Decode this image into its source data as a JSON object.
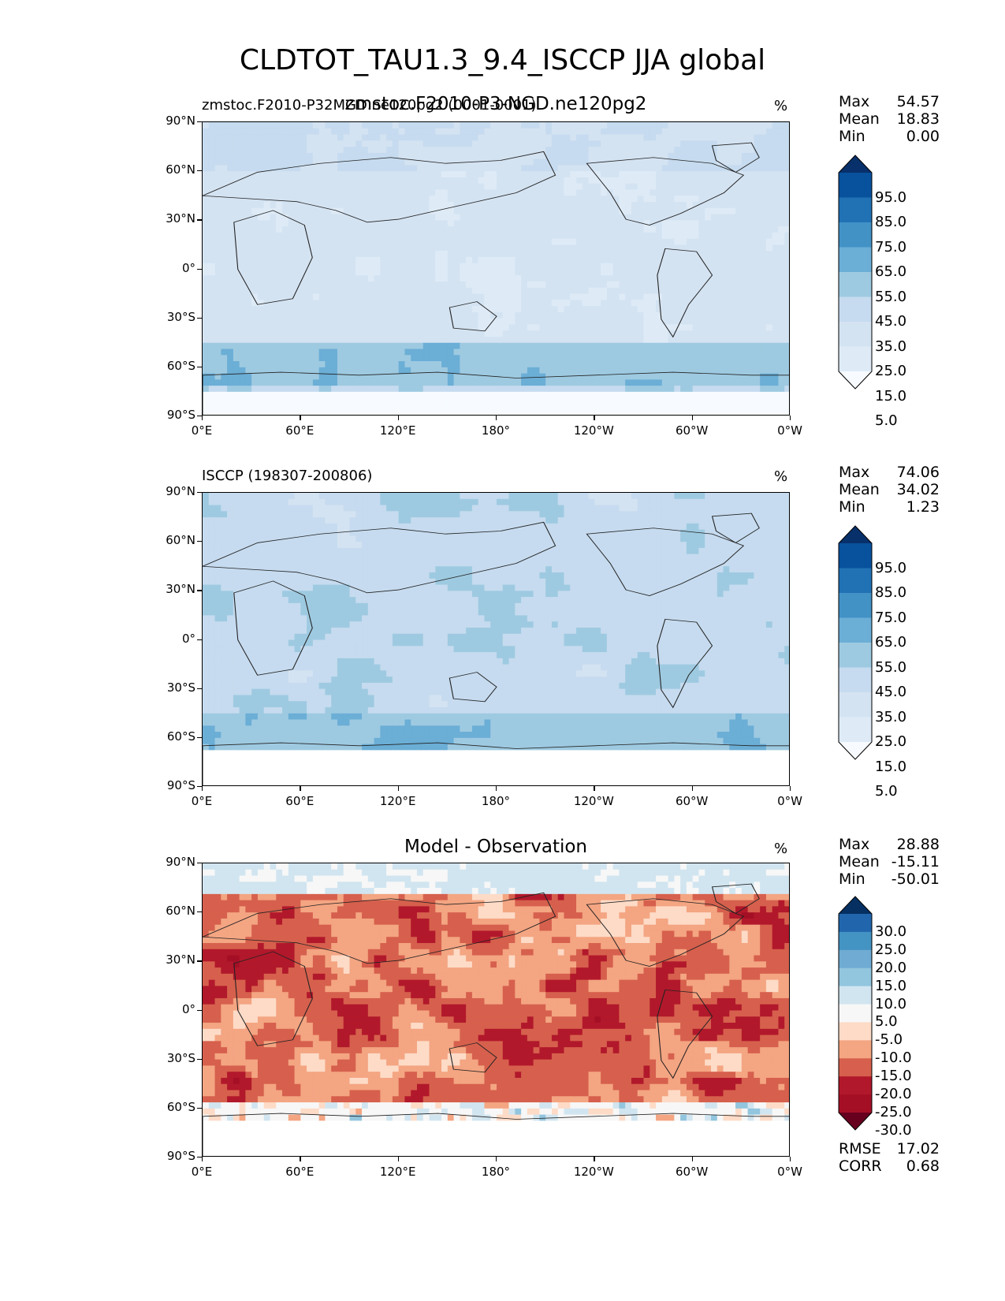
{
  "title": "CLDTOT_TAU1.3_9.4_ISCCP JJA global",
  "lat_ticks": [
    "90°N",
    "60°N",
    "30°N",
    "0°",
    "30°S",
    "60°S",
    "90°S"
  ],
  "lon_ticks": [
    "0°E",
    "60°E",
    "120°E",
    "180°",
    "120°W",
    "60°W",
    "0°W"
  ],
  "panels": [
    {
      "title_left": "zmstoc.F2010-P32MGD.ne120pg2 (0001-0001)",
      "title_center": "zmstoc.F2010-P3-NGD.ne120pg2",
      "unit": "%",
      "stats": [
        {
          "label": "Max",
          "value": "54.57"
        },
        {
          "label": "Mean",
          "value": "18.83"
        },
        {
          "label": "Min",
          "value": "0.00"
        }
      ],
      "colorbar": {
        "labels": [
          "95.0",
          "85.0",
          "75.0",
          "65.0",
          "55.0",
          "45.0",
          "35.0",
          "25.0",
          "15.0",
          "5.0"
        ],
        "colors": [
          "#08306b",
          "#08519c",
          "#2171b5",
          "#4292c6",
          "#6baed6",
          "#9ecae1",
          "#c6dbef",
          "#d4e3f2",
          "#deebf7",
          "#f7fbff"
        ]
      }
    },
    {
      "title_left": "ISCCP (198307-200806)",
      "title_center": "",
      "unit": "%",
      "stats": [
        {
          "label": "Max",
          "value": "74.06"
        },
        {
          "label": "Mean",
          "value": "34.02"
        },
        {
          "label": "Min",
          "value": "1.23"
        }
      ],
      "colorbar": {
        "labels": [
          "95.0",
          "85.0",
          "75.0",
          "65.0",
          "55.0",
          "45.0",
          "35.0",
          "25.0",
          "15.0",
          "5.0"
        ],
        "colors": [
          "#08306b",
          "#08519c",
          "#2171b5",
          "#4292c6",
          "#6baed6",
          "#9ecae1",
          "#c6dbef",
          "#d4e3f2",
          "#deebf7",
          "#f7fbff"
        ]
      }
    },
    {
      "title_left": "",
      "title_center": "Model - Observation",
      "unit": "%",
      "stats": [
        {
          "label": "Max",
          "value": "28.88"
        },
        {
          "label": "Mean",
          "value": "-15.11"
        },
        {
          "label": "Min",
          "value": "-50.01"
        }
      ],
      "colorbar": {
        "labels": [
          "30.0",
          "25.0",
          "20.0",
          "15.0",
          "10.0",
          "5.0",
          "-5.0",
          "-10.0",
          "-15.0",
          "-20.0",
          "-25.0",
          "-30.0"
        ],
        "colors": [
          "#053061",
          "#2166ac",
          "#4393c3",
          "#6fabd2",
          "#92c5de",
          "#d1e5f0",
          "#f7f7f7",
          "#fddbc7",
          "#f4a582",
          "#d6604d",
          "#b2182b",
          "#a50f26",
          "#67001f"
        ]
      },
      "metrics": [
        {
          "label": "RMSE",
          "value": "17.02"
        },
        {
          "label": "CORR",
          "value": "0.68"
        }
      ]
    }
  ],
  "chart_data": [
    {
      "type": "heatmap",
      "title": "zmstoc.F2010-P3-NGD.ne120pg2",
      "variable": "CLDTOT_TAU1.3_9.4_ISCCP",
      "season": "JJA",
      "unit": "%",
      "xlim": [
        0,
        360
      ],
      "ylim": [
        -90,
        90
      ],
      "levels": [
        5,
        15,
        25,
        35,
        45,
        55,
        65,
        75,
        85,
        95
      ],
      "stats": {
        "max": 54.57,
        "mean": 18.83,
        "min": 0.0
      }
    },
    {
      "type": "heatmap",
      "title": "ISCCP (198307-200806)",
      "unit": "%",
      "xlim": [
        0,
        360
      ],
      "ylim": [
        -90,
        90
      ],
      "levels": [
        5,
        15,
        25,
        35,
        45,
        55,
        65,
        75,
        85,
        95
      ],
      "stats": {
        "max": 74.06,
        "mean": 34.02,
        "min": 1.23
      }
    },
    {
      "type": "heatmap",
      "title": "Model - Observation",
      "unit": "%",
      "xlim": [
        0,
        360
      ],
      "ylim": [
        -90,
        90
      ],
      "levels": [
        -30,
        -25,
        -20,
        -15,
        -10,
        -5,
        5,
        10,
        15,
        20,
        25,
        30
      ],
      "stats": {
        "max": 28.88,
        "mean": -15.11,
        "min": -50.01,
        "rmse": 17.02,
        "corr": 0.68
      }
    }
  ]
}
